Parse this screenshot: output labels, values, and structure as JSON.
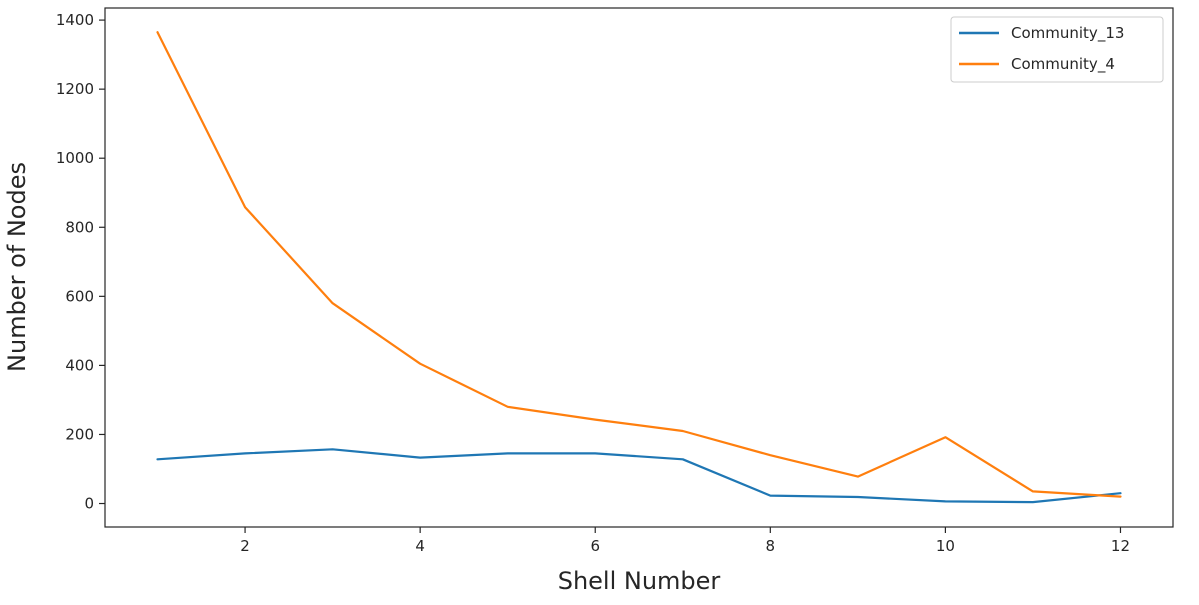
{
  "chart_data": {
    "type": "line",
    "xlabel": "Shell Number",
    "ylabel": "Number of Nodes",
    "xlim": [
      0.4,
      12.6
    ],
    "ylim": [
      -68,
      1435
    ],
    "xticks": [
      2,
      4,
      6,
      8,
      10,
      12
    ],
    "yticks": [
      0,
      200,
      400,
      600,
      800,
      1000,
      1200,
      1400
    ],
    "grid": false,
    "legend_position": "top-right",
    "x": [
      1,
      2,
      3,
      4,
      5,
      6,
      7,
      8,
      9,
      10,
      11,
      12
    ],
    "series": [
      {
        "name": "Community_13",
        "color": "#1f77b4",
        "values": [
          128,
          145,
          157,
          133,
          145,
          145,
          128,
          23,
          19,
          6,
          4,
          30
        ]
      },
      {
        "name": "Community_4",
        "color": "#ff7f0e",
        "values": [
          1365,
          858,
          580,
          405,
          280,
          243,
          210,
          140,
          78,
          192,
          35,
          20
        ]
      }
    ]
  }
}
